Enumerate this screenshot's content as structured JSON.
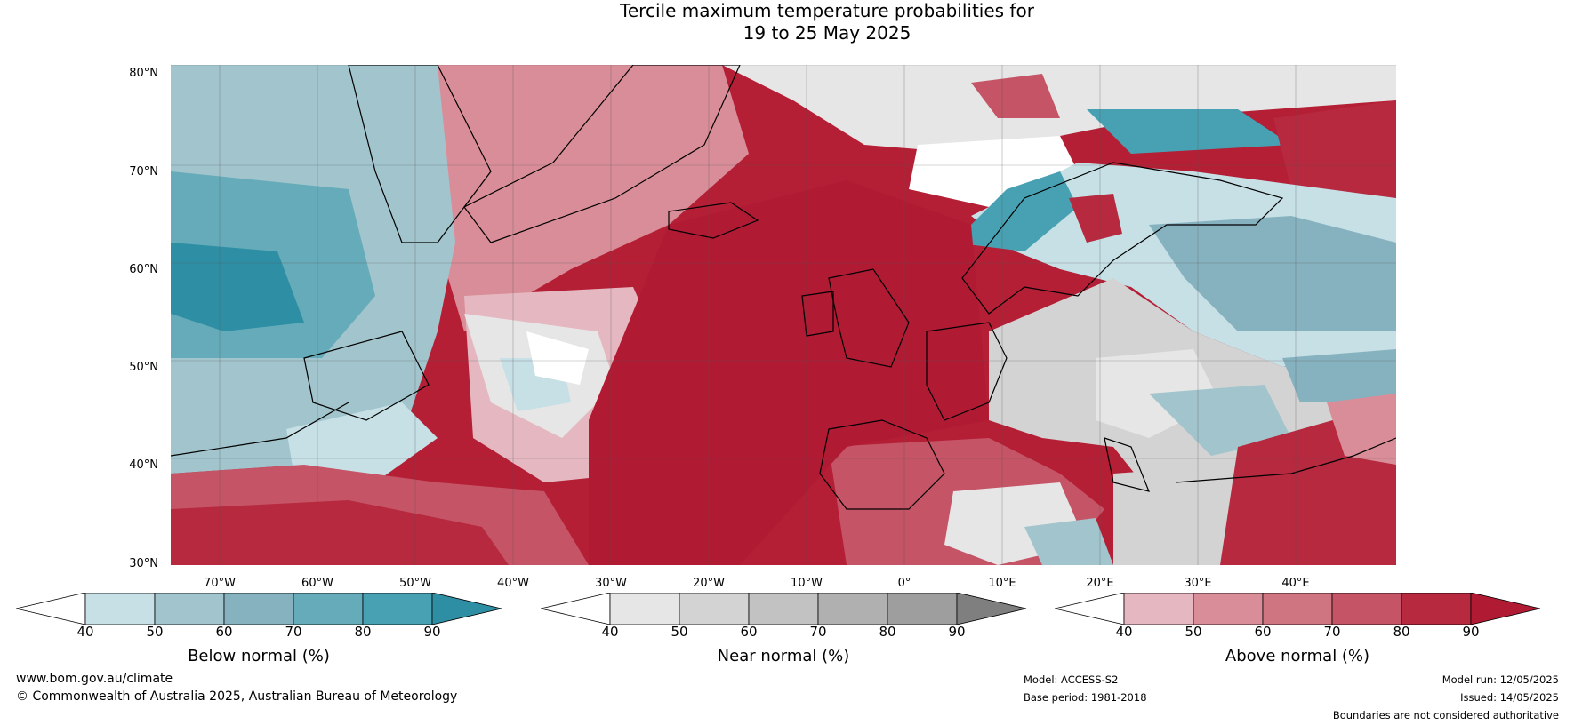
{
  "title": {
    "line1": "Tercile maximum temperature probabilities for",
    "line2": "19 to 25 May 2025"
  },
  "map": {
    "lat_labels": [
      "80°N",
      "70°N",
      "60°N",
      "50°N",
      "40°N",
      "30°N"
    ],
    "lon_labels": [
      "70°W",
      "60°W",
      "50°W",
      "40°W",
      "30°W",
      "20°W",
      "10°W",
      "0°",
      "10°E",
      "20°E",
      "30°E",
      "40°E"
    ]
  },
  "colorbars": [
    {
      "label": "Below normal (%)",
      "ticks": [
        "40",
        "50",
        "60",
        "70",
        "80",
        "90"
      ],
      "colors": [
        "#ffffff",
        "#c6e0e6",
        "#a2c4cc",
        "#86b2c0",
        "#66abb9",
        "#48a1b3",
        "#2e8fa4"
      ]
    },
    {
      "label": "Near normal (%)",
      "ticks": [
        "40",
        "50",
        "60",
        "70",
        "80",
        "90"
      ],
      "colors": [
        "#ffffff",
        "#e6e6e6",
        "#d3d3d3",
        "#c2c2c2",
        "#b0b0b0",
        "#9e9e9e",
        "#7f7f7f"
      ]
    },
    {
      "label": "Above normal (%)",
      "ticks": [
        "40",
        "50",
        "60",
        "70",
        "80",
        "90"
      ],
      "colors": [
        "#ffffff",
        "#e5b8c1",
        "#d98d98",
        "#cf7582",
        "#c55466",
        "#b6293e",
        "#b01a33"
      ]
    }
  ],
  "footer": {
    "website": "www.bom.gov.au/climate",
    "copyright": "© Commonwealth of Australia 2025, Australian Bureau of Meteorology",
    "model": "Model: ACCESS-S2",
    "base_period": "Base period: 1981-2018",
    "model_run": "Model run: 12/05/2025",
    "issued": "Issued: 14/05/2025",
    "disclaimer": "Boundaries are not considered authoritative"
  }
}
